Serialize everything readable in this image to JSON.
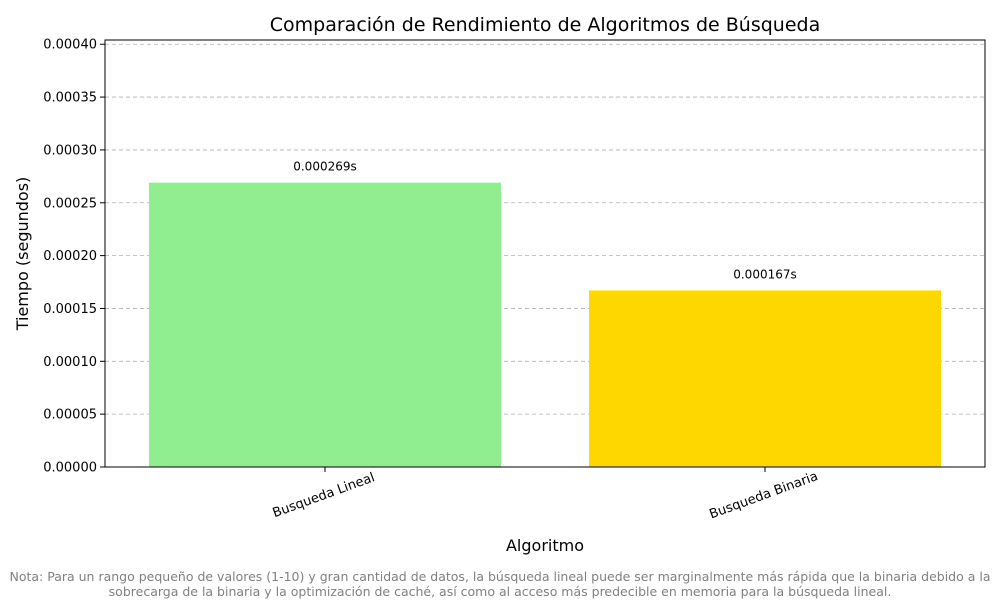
{
  "chart_data": {
    "type": "bar",
    "title": "Comparación de Rendimiento de Algoritmos de Búsqueda",
    "xlabel": "Algoritmo",
    "ylabel": "Tiempo (segundos)",
    "categories": [
      "Busqueda Lineal",
      "Busqueda Binaria"
    ],
    "values": [
      0.000269,
      0.000167
    ],
    "value_labels": [
      "0.000269s",
      "0.000167s"
    ],
    "ylim": [
      0,
      0.000404
    ],
    "yticks": [
      0,
      5e-05,
      0.0001,
      0.00015,
      0.0002,
      0.00025,
      0.0003,
      0.00035,
      0.0004
    ],
    "ytick_labels": [
      "0.00000",
      "0.00005",
      "0.00010",
      "0.00015",
      "0.00020",
      "0.00025",
      "0.00030",
      "0.00035",
      "0.00040"
    ],
    "colors": [
      "#90ee90",
      "#ffd700"
    ],
    "grid": "y-dashed",
    "legend": "none"
  },
  "note": {
    "line1": "Nota: Para un rango pequeño de valores (1-10) y gran cantidad de datos, la búsqueda lineal puede ser marginalmente más rápida que la binaria debido a la",
    "line2": "sobrecarga de la binaria y la optimización de caché, así como al acceso más predecible en memoria para la búsqueda lineal."
  }
}
